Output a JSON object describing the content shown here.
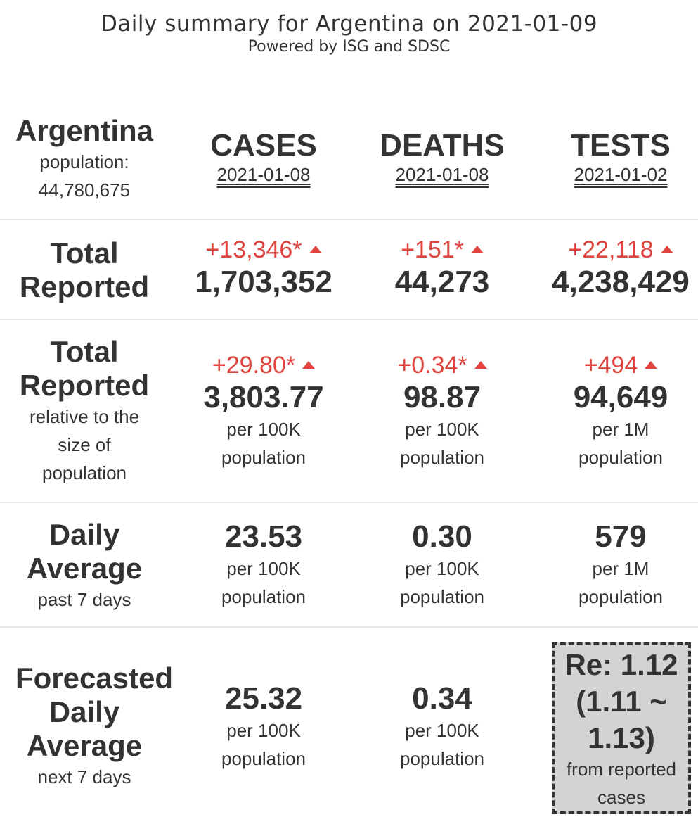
{
  "header": {
    "title": "Daily summary for Argentina on 2021-01-09",
    "subtitle": "Powered by ISG and SDSC"
  },
  "country": {
    "name": "Argentina",
    "population_label": "population:",
    "population": "44,780,675"
  },
  "columns": [
    {
      "name": "CASES",
      "date": "2021-01-08"
    },
    {
      "name": "DEATHS",
      "date": "2021-01-08"
    },
    {
      "name": "TESTS",
      "date": "2021-01-02"
    }
  ],
  "rows": {
    "total": {
      "label_line1": "Total",
      "label_line2": "Reported",
      "cells": [
        {
          "delta": "+13,346*",
          "value": "1,703,352"
        },
        {
          "delta": "+151*",
          "value": "44,273"
        },
        {
          "delta": "+22,118",
          "value": "4,238,429"
        }
      ]
    },
    "relative": {
      "label_line1": "Total",
      "label_line2": "Reported",
      "label_sub1": "relative to the",
      "label_sub2": "size of",
      "label_sub3": "population",
      "cells": [
        {
          "delta": "+29.80*",
          "value": "3,803.77",
          "unit1": "per 100K",
          "unit2": "population"
        },
        {
          "delta": "+0.34*",
          "value": "98.87",
          "unit1": "per 100K",
          "unit2": "population"
        },
        {
          "delta": "+494",
          "value": "94,649",
          "unit1": "per 1M",
          "unit2": "population"
        }
      ]
    },
    "daily_avg": {
      "label_line1": "Daily",
      "label_line2": "Average",
      "label_sub": "past 7 days",
      "cells": [
        {
          "value": "23.53",
          "unit1": "per 100K",
          "unit2": "population"
        },
        {
          "value": "0.30",
          "unit1": "per 100K",
          "unit2": "population"
        },
        {
          "value": "579",
          "unit1": "per 1M",
          "unit2": "population"
        }
      ]
    },
    "forecast": {
      "label_line1": "Forecasted",
      "label_line2": "Daily",
      "label_line3": "Average",
      "label_sub": "next 7 days",
      "cells": [
        {
          "value": "25.32",
          "unit1": "per 100K",
          "unit2": "population"
        },
        {
          "value": "0.34",
          "unit1": "per 100K",
          "unit2": "population"
        }
      ],
      "re": {
        "line1": "Re: 1.12",
        "line2": "(1.11 ~",
        "line3": "1.13)",
        "sub1": "from reported",
        "sub2": "cases"
      }
    }
  },
  "colors": {
    "text": "#333333",
    "increase": "#e0443e",
    "divider": "#e6e6e6",
    "re_box": "#d3d3d3"
  },
  "icons": {
    "increase": "triangle-up-icon"
  }
}
